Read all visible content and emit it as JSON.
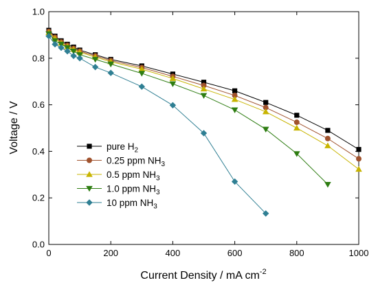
{
  "chart_data": {
    "type": "line",
    "title": "",
    "xlabel": "Current Density / mA cm",
    "xlabel_superscript": "-2",
    "ylabel": "Voltage / V",
    "xlim": [
      0,
      1000
    ],
    "ylim": [
      0.0,
      1.0
    ],
    "x_ticks": [
      0,
      200,
      400,
      600,
      800,
      1000
    ],
    "y_ticks": [
      0.0,
      0.2,
      0.4,
      0.6,
      0.8,
      1.0
    ],
    "x_tick_labels": [
      "0",
      "200",
      "400",
      "600",
      "800",
      "1000"
    ],
    "y_tick_labels": [
      "0.0",
      "0.2",
      "0.4",
      "0.6",
      "0.8",
      "1.0"
    ],
    "grid": false,
    "legend_position": "bottom-left",
    "series": [
      {
        "name": "pure H",
        "name_subscript": "2",
        "color": "#000000",
        "marker": "square",
        "x": [
          0,
          20,
          40,
          60,
          80,
          100,
          150,
          200,
          300,
          400,
          500,
          600,
          700,
          800,
          900,
          1000
        ],
        "y": [
          0.92,
          0.895,
          0.875,
          0.86,
          0.848,
          0.835,
          0.815,
          0.795,
          0.767,
          0.732,
          0.697,
          0.66,
          0.61,
          0.555,
          0.49,
          0.408
        ]
      },
      {
        "name": "0.25 ppm NH",
        "name_subscript": "3",
        "color": "#a0522d",
        "marker": "circle",
        "x": [
          0,
          20,
          40,
          60,
          80,
          100,
          150,
          200,
          300,
          400,
          500,
          600,
          700,
          800,
          900,
          1000
        ],
        "y": [
          0.915,
          0.89,
          0.87,
          0.855,
          0.842,
          0.83,
          0.81,
          0.79,
          0.76,
          0.722,
          0.683,
          0.64,
          0.588,
          0.525,
          0.455,
          0.368
        ]
      },
      {
        "name": "0.5 ppm NH",
        "name_subscript": "3",
        "color": "#c8b400",
        "marker": "triangle-up",
        "x": [
          0,
          20,
          40,
          60,
          80,
          100,
          150,
          200,
          300,
          400,
          500,
          600,
          700,
          800,
          900,
          1000
        ],
        "y": [
          0.91,
          0.885,
          0.865,
          0.85,
          0.838,
          0.826,
          0.805,
          0.785,
          0.753,
          0.713,
          0.668,
          0.623,
          0.57,
          0.5,
          0.424,
          0.323
        ]
      },
      {
        "name": "1.0 ppm NH",
        "name_subscript": "3",
        "color": "#2e7d12",
        "marker": "triangle-down",
        "x": [
          0,
          20,
          40,
          60,
          80,
          100,
          150,
          200,
          300,
          400,
          500,
          600,
          700,
          800,
          900
        ],
        "y": [
          0.905,
          0.875,
          0.86,
          0.845,
          0.83,
          0.815,
          0.795,
          0.775,
          0.735,
          0.69,
          0.64,
          0.578,
          0.495,
          0.39,
          0.258
        ]
      },
      {
        "name": "10 ppm NH",
        "name_subscript": "3",
        "color": "#2f7f93",
        "marker": "diamond",
        "x": [
          0,
          20,
          40,
          60,
          80,
          100,
          150,
          200,
          300,
          400,
          500,
          600,
          700
        ],
        "y": [
          0.895,
          0.86,
          0.845,
          0.83,
          0.81,
          0.8,
          0.762,
          0.737,
          0.678,
          0.598,
          0.478,
          0.27,
          0.133
        ]
      }
    ]
  }
}
